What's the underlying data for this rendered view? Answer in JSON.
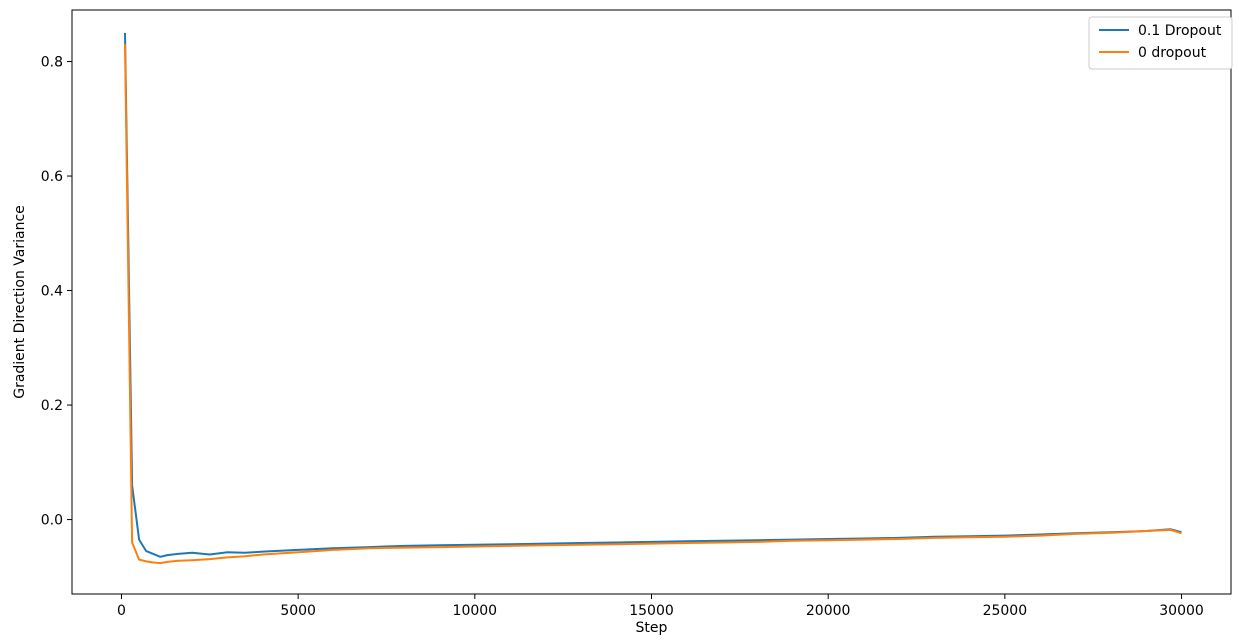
{
  "chart_data": {
    "type": "line",
    "title": "",
    "xlabel": "Step",
    "ylabel": "Gradient Direction Variance",
    "xlim": [
      -1400,
      31400
    ],
    "ylim": [
      -0.13,
      0.89
    ],
    "xticks": [
      0,
      5000,
      10000,
      15000,
      20000,
      25000,
      30000
    ],
    "yticks": [
      0.0,
      0.2,
      0.4,
      0.6,
      0.8
    ],
    "xtick_labels": [
      "0",
      "5000",
      "10000",
      "15000",
      "20000",
      "25000",
      "30000"
    ],
    "ytick_labels": [
      "0.0",
      "0.2",
      "0.4",
      "0.6",
      "0.8"
    ],
    "grid": false,
    "legend": {
      "position": "top-right"
    },
    "series": [
      {
        "name": "0.1 Dropout",
        "color": "#1f77b4",
        "x": [
          100,
          300,
          500,
          700,
          900,
          1100,
          1300,
          1600,
          2000,
          2500,
          3000,
          3500,
          4000,
          5000,
          6000,
          7000,
          8000,
          9000,
          10000,
          11000,
          12000,
          13000,
          14000,
          15000,
          16000,
          17000,
          18000,
          19000,
          20000,
          21000,
          22000,
          23000,
          24000,
          25000,
          26000,
          27000,
          28000,
          29000,
          29700,
          30000
        ],
        "y": [
          0.85,
          0.06,
          -0.035,
          -0.055,
          -0.06,
          -0.065,
          -0.062,
          -0.06,
          -0.058,
          -0.061,
          -0.057,
          -0.058,
          -0.056,
          -0.053,
          -0.05,
          -0.048,
          -0.046,
          -0.045,
          -0.044,
          -0.043,
          -0.042,
          -0.041,
          -0.04,
          -0.039,
          -0.038,
          -0.037,
          -0.036,
          -0.035,
          -0.034,
          -0.033,
          -0.032,
          -0.03,
          -0.029,
          -0.028,
          -0.026,
          -0.024,
          -0.022,
          -0.02,
          -0.017,
          -0.022
        ]
      },
      {
        "name": "0 dropout",
        "color": "#ff7f0e",
        "x": [
          100,
          300,
          500,
          700,
          900,
          1100,
          1300,
          1600,
          2000,
          2500,
          3000,
          3500,
          4000,
          5000,
          6000,
          7000,
          8000,
          9000,
          10000,
          11000,
          12000,
          13000,
          14000,
          15000,
          16000,
          17000,
          18000,
          19000,
          20000,
          21000,
          22000,
          23000,
          24000,
          25000,
          26000,
          27000,
          28000,
          29000,
          29700,
          30000
        ],
        "y": [
          0.83,
          -0.04,
          -0.07,
          -0.073,
          -0.075,
          -0.076,
          -0.074,
          -0.072,
          -0.071,
          -0.069,
          -0.066,
          -0.064,
          -0.061,
          -0.057,
          -0.053,
          -0.05,
          -0.049,
          -0.048,
          -0.047,
          -0.046,
          -0.045,
          -0.044,
          -0.043,
          -0.042,
          -0.041,
          -0.04,
          -0.039,
          -0.037,
          -0.036,
          -0.035,
          -0.034,
          -0.032,
          -0.031,
          -0.03,
          -0.028,
          -0.025,
          -0.023,
          -0.02,
          -0.018,
          -0.024
        ]
      }
    ]
  }
}
